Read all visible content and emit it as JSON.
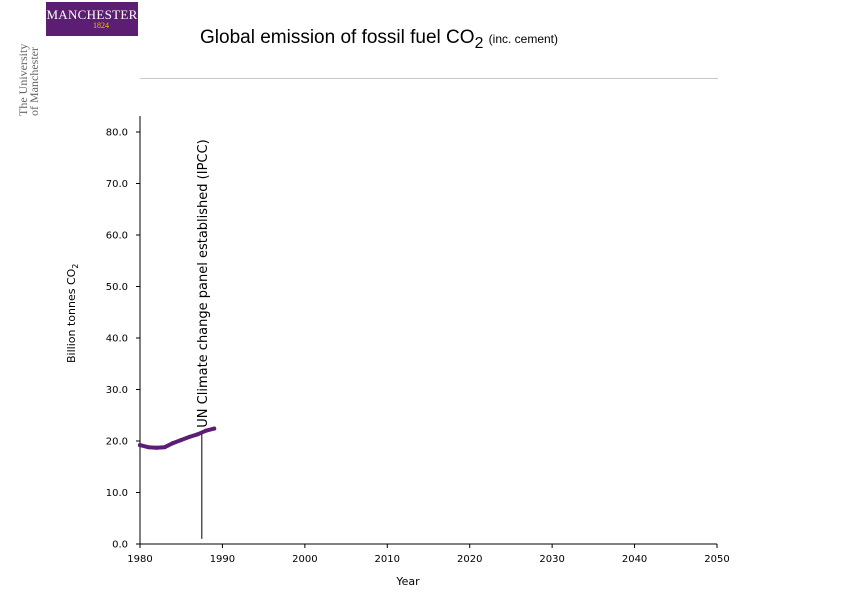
{
  "brand": {
    "logo_text": "MANCHESTER",
    "logo_year": "1824",
    "university_line1": "The University",
    "university_line2": "of Manchester",
    "color": "#5c1e72"
  },
  "chart_data": {
    "type": "line",
    "title": "Global emission of fossil fuel CO",
    "title_subscript": "2",
    "title_suffix": "(inc. cement)",
    "xlabel": "Year",
    "ylabel": "Billion tonnes CO",
    "ylabel_subscript": "2",
    "xlim": [
      1980,
      2050
    ],
    "ylim": [
      0,
      80
    ],
    "x_ticks": [
      1980,
      1990,
      2000,
      2010,
      2020,
      2030,
      2040,
      2050
    ],
    "y_ticks": [
      "0.0",
      "10.0",
      "20.0",
      "30.0",
      "40.0",
      "50.0",
      "60.0",
      "70.0",
      "80.0"
    ],
    "grid": false,
    "series": [
      {
        "color": "#5c1e72",
        "x": [
          1980,
          1981,
          1982,
          1983,
          1984,
          1985,
          1986,
          1987,
          1988,
          1989
        ],
        "y": [
          19.2,
          18.8,
          18.7,
          18.8,
          19.6,
          20.2,
          20.8,
          21.3,
          22.0,
          22.4
        ]
      }
    ],
    "annotations": [
      {
        "x": 1987.5,
        "y_from": 1.0,
        "y_to": 21.8,
        "text": "UN Climate change panel established (IPCC)"
      }
    ]
  }
}
